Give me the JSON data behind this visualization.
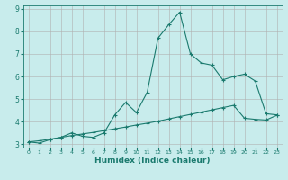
{
  "xlabel": "Humidex (Indice chaleur)",
  "ylabel": "",
  "background_color": "#c8ecec",
  "grid_color": "#b0b0b0",
  "line_color": "#1a7a6e",
  "xlim_min": -0.5,
  "xlim_max": 23.5,
  "ylim_min": 2.85,
  "ylim_max": 9.15,
  "yticks": [
    3,
    4,
    5,
    6,
    7,
    8,
    9
  ],
  "xticks": [
    0,
    1,
    2,
    3,
    4,
    5,
    6,
    7,
    8,
    9,
    10,
    11,
    12,
    13,
    14,
    15,
    16,
    17,
    18,
    19,
    20,
    21,
    22,
    23
  ],
  "line1_x": [
    0,
    1,
    2,
    3,
    4,
    5,
    6,
    7,
    8,
    9,
    10,
    11,
    12,
    13,
    14,
    15,
    16,
    17,
    18,
    19,
    20,
    21,
    22,
    23
  ],
  "line1_y": [
    3.1,
    3.05,
    3.2,
    3.3,
    3.5,
    3.35,
    3.3,
    3.5,
    4.3,
    4.85,
    4.4,
    5.3,
    7.7,
    8.3,
    8.85,
    7.0,
    6.6,
    6.5,
    5.85,
    6.0,
    6.1,
    5.8,
    4.35,
    4.3
  ],
  "line2_x": [
    0,
    1,
    2,
    3,
    4,
    5,
    6,
    7,
    8,
    9,
    10,
    11,
    12,
    13,
    14,
    15,
    16,
    17,
    18,
    19,
    20,
    21,
    22,
    23
  ],
  "line2_y": [
    3.1,
    3.15,
    3.22,
    3.3,
    3.38,
    3.45,
    3.52,
    3.6,
    3.68,
    3.76,
    3.85,
    3.93,
    4.02,
    4.12,
    4.22,
    4.32,
    4.42,
    4.52,
    4.62,
    4.72,
    4.15,
    4.1,
    4.07,
    4.28
  ]
}
